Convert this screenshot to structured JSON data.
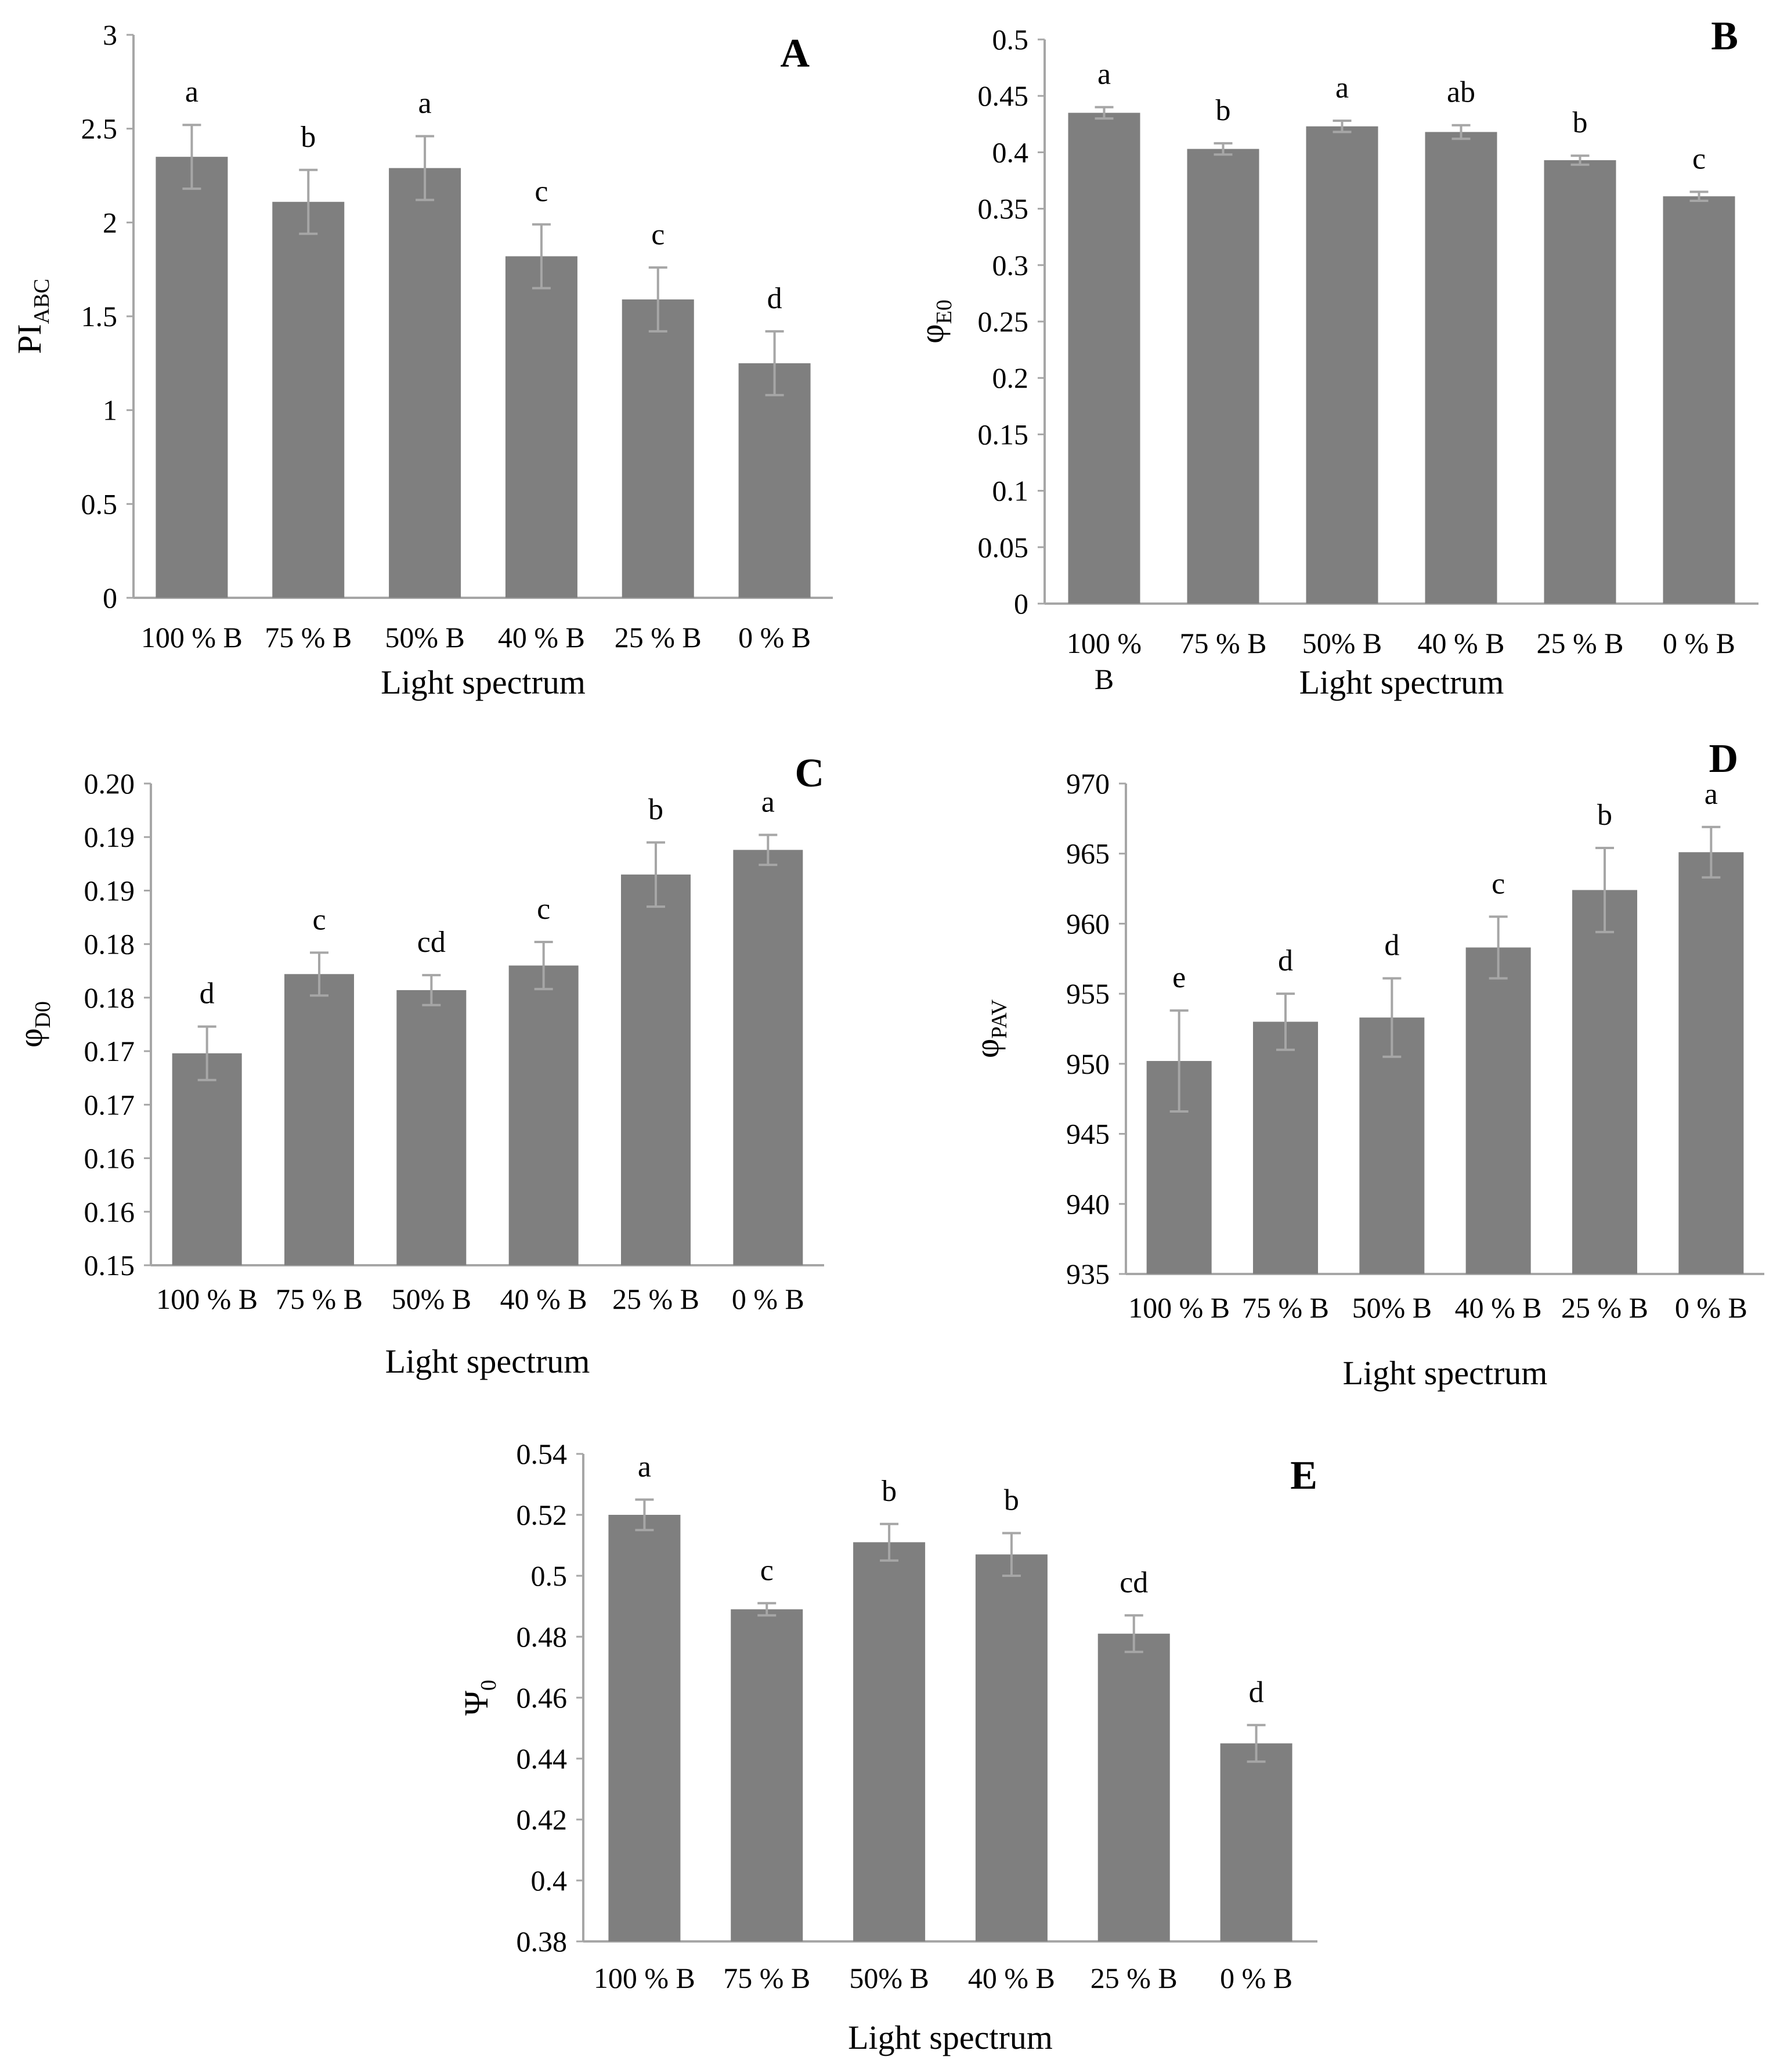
{
  "figure": {
    "panels": [
      "A",
      "B",
      "C",
      "D",
      "E"
    ]
  },
  "chart_data": [
    {
      "panel": "A",
      "type": "bar",
      "categories": [
        "100 % B",
        "75 % B",
        "50% B",
        "40 % B",
        "25 % B",
        "0 % B"
      ],
      "values": [
        2.35,
        2.11,
        2.29,
        1.82,
        1.59,
        1.25
      ],
      "errors": [
        0.17,
        0.17,
        0.17,
        0.17,
        0.17,
        0.17
      ],
      "significance": [
        "a",
        "b",
        "a",
        "c",
        "c",
        "d"
      ],
      "yticks": [
        "0",
        "0.5",
        "1",
        "1.5",
        "2",
        "2.5",
        "3"
      ],
      "ylim": [
        0,
        3
      ],
      "ylabel_main": "PI",
      "ylabel_sub": "ABC",
      "xlabel": "Light spectrum",
      "title": ""
    },
    {
      "panel": "B",
      "type": "bar",
      "categories": [
        "100 % B",
        "75 % B",
        "50% B",
        "40 % B",
        "25 % B",
        "0 % B"
      ],
      "values": [
        0.435,
        0.403,
        0.423,
        0.418,
        0.393,
        0.361
      ],
      "errors": [
        0.005,
        0.005,
        0.005,
        0.006,
        0.004,
        0.004
      ],
      "significance": [
        "a",
        "b",
        "a",
        "ab",
        "b",
        "c"
      ],
      "yticks": [
        "0",
        "0.05",
        "0.1",
        "0.15",
        "0.2",
        "0.25",
        "0.3",
        "0.35",
        "0.4",
        "0.45",
        "0.5"
      ],
      "ylim": [
        0,
        0.5
      ],
      "ylabel_main": "φ",
      "ylabel_sub": "E0",
      "xlabel": "Light spectrum",
      "title": ""
    },
    {
      "panel": "C",
      "type": "bar",
      "categories": [
        "100 % B",
        "75 % B",
        "50% B",
        "40 % B",
        "25 % B",
        "0 % B"
      ],
      "values": [
        0.1698,
        0.1772,
        0.1757,
        0.178,
        0.1865,
        0.1888
      ],
      "errors": [
        0.0025,
        0.002,
        0.0014,
        0.0022,
        0.003,
        0.0014
      ],
      "significance": [
        "d",
        "c",
        "cd",
        "c",
        "b",
        "a"
      ],
      "yticks": [
        "0.15",
        "0.16",
        "0.16",
        "0.17",
        "0.17",
        "0.18",
        "0.18",
        "0.19",
        "0.19",
        "0.20"
      ],
      "ylim": [
        0.15,
        0.195
      ],
      "ylabel_main": "φ",
      "ylabel_sub": "D0",
      "xlabel": "Light spectrum",
      "title": ""
    },
    {
      "panel": "D",
      "type": "bar",
      "categories": [
        "100 % B",
        "75 % B",
        "50% B",
        "40 % B",
        "25 % B",
        "0 % B"
      ],
      "values": [
        950.2,
        953.0,
        953.3,
        958.3,
        962.4,
        965.1
      ],
      "errors": [
        3.6,
        2.0,
        2.8,
        2.2,
        3.0,
        1.8
      ],
      "significance": [
        "e",
        "d",
        "d",
        "c",
        "b",
        "a"
      ],
      "yticks": [
        "935",
        "940",
        "945",
        "950",
        "955",
        "960",
        "965",
        "970"
      ],
      "ylim": [
        935,
        970
      ],
      "ylabel_main": "φ",
      "ylabel_sub": "PAV",
      "xlabel": "Light spectrum",
      "title": ""
    },
    {
      "panel": "E",
      "type": "bar",
      "categories": [
        "100 % B",
        "75 % B",
        "50% B",
        "40 % B",
        "25 % B",
        "0 % B"
      ],
      "values": [
        0.52,
        0.489,
        0.511,
        0.507,
        0.481,
        0.445
      ],
      "errors": [
        0.005,
        0.002,
        0.006,
        0.007,
        0.006,
        0.006
      ],
      "significance": [
        "a",
        "c",
        "b",
        "b",
        "cd",
        "d"
      ],
      "yticks": [
        "0.38",
        "0.4",
        "0.42",
        "0.44",
        "0.46",
        "0.48",
        "0.5",
        "0.52",
        "0.54"
      ],
      "ylim": [
        0.38,
        0.54
      ],
      "ylabel_main": "Ψ",
      "ylabel_sub": "0",
      "xlabel": "Light spectrum",
      "title": ""
    }
  ]
}
